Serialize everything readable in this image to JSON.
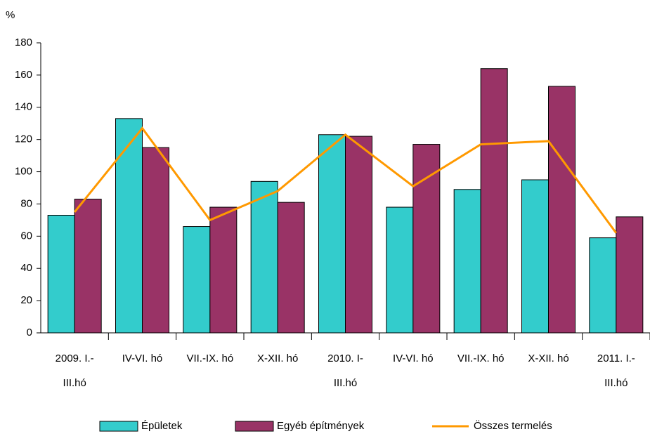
{
  "chart_data": {
    "type": "bar",
    "y_unit": "%",
    "categories": [
      [
        "2009. I.-",
        "III.hó"
      ],
      [
        "IV-VI. hó"
      ],
      [
        "VII.-IX. hó"
      ],
      [
        "X-XII. hó"
      ],
      [
        "2010. I-",
        "III.hó"
      ],
      [
        "IV-VI. hó"
      ],
      [
        "VII.-IX. hó"
      ],
      [
        "X-XII. hó"
      ],
      [
        "2011.  I.-",
        "III.hó"
      ]
    ],
    "series": [
      {
        "name": "Épületek",
        "type": "bar",
        "color": "#33cccc",
        "values": [
          73,
          133,
          66,
          94,
          123,
          78,
          89,
          95,
          59
        ]
      },
      {
        "name": "Egyéb építmények",
        "type": "bar",
        "color": "#993366",
        "values": [
          83,
          115,
          78,
          81,
          122,
          117,
          164,
          153,
          72
        ]
      },
      {
        "name": "Összes termelés",
        "type": "line",
        "color": "#ff9900",
        "values": [
          75,
          127,
          70,
          88,
          123,
          91,
          117,
          119,
          62
        ]
      }
    ],
    "ylim": [
      0,
      180
    ],
    "yticks": [
      0,
      20,
      40,
      60,
      80,
      100,
      120,
      140,
      160,
      180
    ],
    "grid": false,
    "legend": "bottom"
  }
}
